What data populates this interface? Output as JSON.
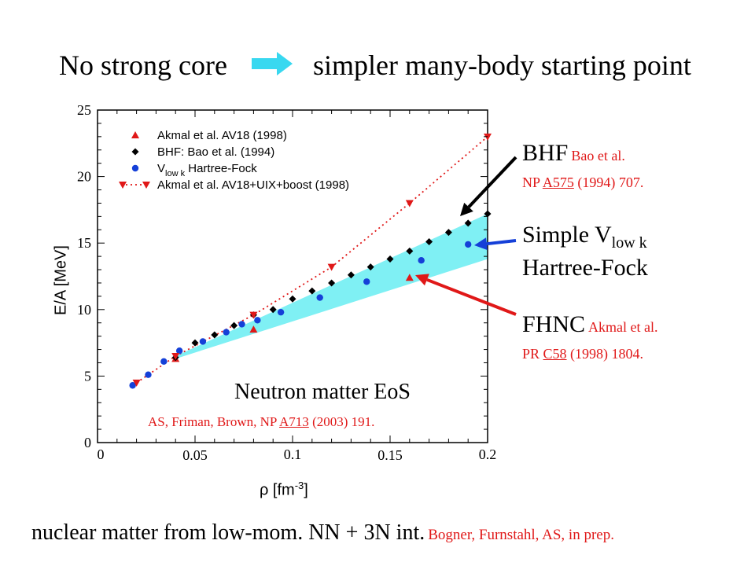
{
  "header": {
    "left": "No strong core",
    "right": "simpler many-body starting point"
  },
  "footer": {
    "main": "nuclear matter from low-mom. NN + 3N int.",
    "ref": "Bogner, Furnstahl, AS, in prep."
  },
  "annotations": {
    "bhf": {
      "title": "BHF",
      "authors": "Bao et al.",
      "journal": "NP",
      "volume": "A575",
      "rest": "(1994) 707."
    },
    "vlowk": {
      "line1": "Simple V",
      "sub": "low k",
      "line2": "Hartree-Fock"
    },
    "fhnc": {
      "title": "FHNC",
      "authors": "Akmal et al.",
      "journal": "PR",
      "volume": "C58",
      "rest": "(1998) 1804."
    },
    "eos": {
      "title": "Neutron matter EoS",
      "ref_pre": "AS, Friman, Brown, NP",
      "ref_vol": "A713",
      "ref_rest": "(2003) 191."
    }
  },
  "colors": {
    "red": "#e01818",
    "blue": "#1540d8",
    "band": "#7ff0f4",
    "arrow_head": "#38d8f0",
    "black": "#000000"
  },
  "chart_data": {
    "type": "scatter",
    "xlabel": "ρ [fm",
    "xlabel_sup": "-3",
    "xlabel_end": "]",
    "ylabel": "E/A [MeV]",
    "xlim": [
      0,
      0.2
    ],
    "ylim": [
      0,
      25
    ],
    "x_ticks_lower": [
      "0",
      "0.05",
      "0.1",
      "0.15",
      "0.2"
    ],
    "x_ticks_upper": [
      "0",
      "0.1",
      "0.2"
    ],
    "y_ticks": [
      "0",
      "5",
      "10",
      "15",
      "20",
      "25"
    ],
    "legend_position": "top-left",
    "band": {
      "x": [
        0.04,
        0.2
      ],
      "upper": [
        6.5,
        17.2
      ],
      "lower": [
        6.3,
        13.8
      ]
    },
    "series": [
      {
        "name": "Akmal et al. AV18 (1998)",
        "marker": "triangle-up",
        "color": "#e01818",
        "x": [
          0.04,
          0.08,
          0.16
        ],
        "y": [
          6.3,
          8.5,
          12.4
        ]
      },
      {
        "name": "BHF: Bao et al. (1994)",
        "marker": "diamond",
        "color": "#000000",
        "x": [
          0.04,
          0.05,
          0.06,
          0.07,
          0.08,
          0.09,
          0.1,
          0.11,
          0.12,
          0.13,
          0.14,
          0.15,
          0.16,
          0.17,
          0.18,
          0.19,
          0.2
        ],
        "y": [
          6.4,
          7.5,
          8.1,
          8.8,
          9.6,
          10.0,
          10.8,
          11.4,
          12.0,
          12.6,
          13.2,
          13.8,
          14.4,
          15.1,
          15.8,
          16.5,
          17.2
        ]
      },
      {
        "name": "V",
        "name_sub": "low k",
        "name_rest": "Hartree-Fock",
        "marker": "circle",
        "color": "#1540d8",
        "x": [
          0.018,
          0.026,
          0.034,
          0.042,
          0.054,
          0.066,
          0.074,
          0.082,
          0.094,
          0.114,
          0.138,
          0.166,
          0.19
        ],
        "y": [
          4.3,
          5.1,
          6.1,
          6.9,
          7.6,
          8.3,
          8.9,
          9.2,
          9.8,
          10.9,
          12.1,
          13.7,
          14.9
        ]
      },
      {
        "name": "Akmal et al. AV18+UIX+boost (1998)",
        "marker": "triangle-down",
        "line": "dotted",
        "color": "#e01818",
        "x": [
          0.02,
          0.04,
          0.08,
          0.12,
          0.16,
          0.2
        ],
        "y": [
          4.5,
          6.5,
          9.6,
          13.2,
          18.0,
          23.0
        ]
      }
    ]
  }
}
